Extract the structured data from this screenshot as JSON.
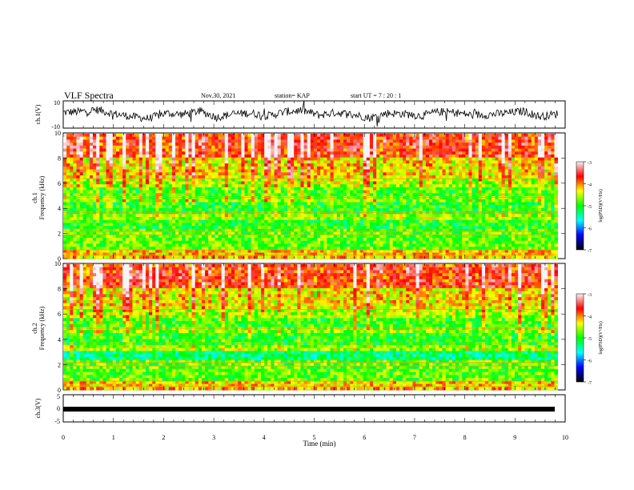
{
  "header": {
    "title": "VLF Spectra",
    "date": "Nov.30, 2021",
    "station": "station= KAP",
    "start": "start  UT =   7 : 20 : 1"
  },
  "colorbar": {
    "label": "log(PSD)(V²/Hz)",
    "ticks": [
      "-3",
      "-4",
      "-5",
      "-6",
      "-7"
    ],
    "stops": [
      "#f5f5f5",
      "#ff0000",
      "#ffff00",
      "#00ff00",
      "#00ffff",
      "#0000ff",
      "#000000"
    ]
  },
  "chart_data": [
    {
      "type": "line",
      "name": "ch1-waveform",
      "ylabel": "ch.1(V)",
      "ylim": [
        -10,
        10
      ],
      "yticks": [
        "10",
        "-10"
      ],
      "xlim": [
        0,
        10
      ],
      "x_units": "min",
      "description_values": "noisy trace around 0 V with amplitude roughly ±5 V",
      "values_sampled": [
        1.5,
        2.0,
        3.5,
        0.5,
        -1.5,
        -3.0,
        1.0,
        0.0,
        2.5,
        -2.0,
        0.5,
        1.0,
        -1.0,
        2.0,
        3.0,
        -0.5,
        1.5,
        0.0,
        -2.5,
        1.0,
        0.5,
        -1.0,
        2.0,
        1.5,
        -0.5,
        0.0,
        1.0,
        2.5,
        -1.5,
        0.5
      ]
    },
    {
      "type": "heatmap",
      "name": "ch1-spectrogram",
      "panel_label": "ch.1",
      "ylabel": "Frequency (kHz)",
      "ylim": [
        0,
        10
      ],
      "yticks": [
        "0",
        "2",
        "4",
        "6",
        "8",
        "10"
      ],
      "xlim": [
        0,
        9.85
      ],
      "colorscale_range": [
        -7,
        -3
      ]
    },
    {
      "type": "heatmap",
      "name": "ch2-spectrogram",
      "panel_label": "ch.2",
      "ylabel": "Frequency (kHz)",
      "ylim": [
        0,
        10
      ],
      "yticks": [
        "0",
        "2",
        "4",
        "6",
        "8",
        "10"
      ],
      "xlim": [
        0,
        9.85
      ],
      "colorscale_range": [
        -7,
        -3
      ]
    },
    {
      "type": "line",
      "name": "ch3-waveform",
      "ylabel": "ch.3(V)",
      "ylim": [
        -5,
        5
      ],
      "yticks": [
        "5",
        "0",
        "-5"
      ],
      "xlim": [
        0,
        10
      ],
      "values_constant": 0
    }
  ],
  "xaxis": {
    "label": "Time  (min)",
    "ticks": [
      "0",
      "1",
      "2",
      "3",
      "4",
      "5",
      "6",
      "7",
      "8",
      "9",
      "10"
    ],
    "range": [
      0,
      10
    ]
  }
}
